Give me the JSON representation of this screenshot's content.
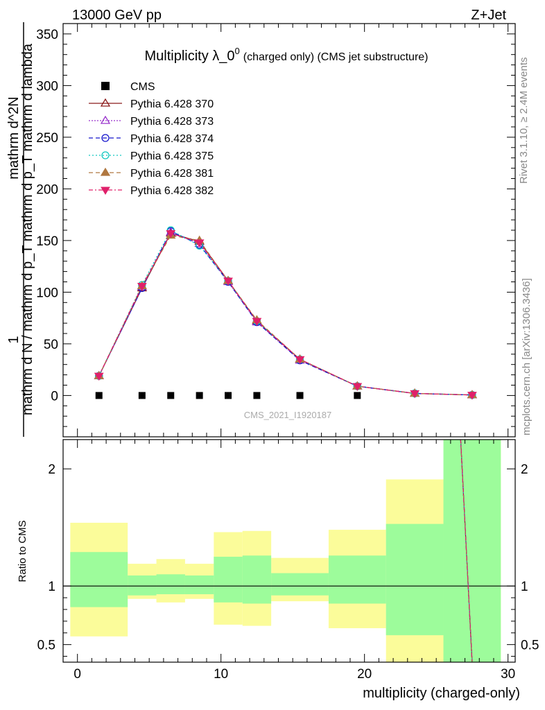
{
  "header": {
    "left": "13000 GeV pp",
    "right": "Z+Jet"
  },
  "side_text": {
    "rivet": "Rivet 3.1.10, ≥ 2.4M events",
    "mcplots": "mcplots.cern.ch [arXiv:1306.3436]"
  },
  "chart_data": {
    "type": "line",
    "title_main": "Multiplicity λ_0",
    "title_sup": "0",
    "title_small": "(charged only) (CMS jet substructure)",
    "analysis_label": "CMS_2021_I1920187",
    "ylabel_top_numerator": "1",
    "ylabel_top_denominator": "mathrm d N / mathrm d p_T mathrm d p_T mathrm d lambda",
    "ylabel_main": "mathrm d^2N",
    "ylabel_ratio": "Ratio to CMS",
    "xlabel": "multiplicity (charged-only)",
    "xlim": [
      -1,
      30.5
    ],
    "ylim_main": [
      -40,
      360
    ],
    "ylim_ratio": [
      0.35,
      2.25
    ],
    "x_ticks": [
      0,
      10,
      20,
      30
    ],
    "y_ticks_main": [
      0,
      50,
      100,
      150,
      200,
      250,
      300,
      350
    ],
    "y_ticks_ratio": [
      0.5,
      1,
      2
    ],
    "legend_position": "top-left",
    "data": {
      "name": "CMS",
      "x": [
        1.5,
        4.5,
        6.5,
        8.5,
        10.5,
        12.5,
        15.5,
        19.5,
        23.5,
        27.5
      ],
      "y": [
        0,
        0,
        0,
        0,
        0,
        0,
        0,
        0,
        null,
        null
      ]
    },
    "bins": [
      [
        -0.5,
        3.5
      ],
      [
        3.5,
        5.5
      ],
      [
        5.5,
        7.5
      ],
      [
        7.5,
        9.5
      ],
      [
        9.5,
        11.5
      ],
      [
        11.5,
        13.5
      ],
      [
        13.5,
        17.5
      ],
      [
        17.5,
        21.5
      ],
      [
        21.5,
        25.5
      ],
      [
        25.5,
        29.5
      ]
    ],
    "band_inner": [
      [
        0.82,
        1.29
      ],
      [
        0.92,
        1.09
      ],
      [
        0.93,
        1.1
      ],
      [
        0.93,
        1.09
      ],
      [
        0.86,
        1.25
      ],
      [
        0.85,
        1.26
      ],
      [
        0.92,
        1.11
      ],
      [
        0.85,
        1.26
      ],
      [
        0.58,
        1.53
      ],
      [
        0.3,
        2.5
      ]
    ],
    "band_outer": [
      [
        0.57,
        1.54
      ],
      [
        0.89,
        1.19
      ],
      [
        0.86,
        1.23
      ],
      [
        0.89,
        1.19
      ],
      [
        0.67,
        1.46
      ],
      [
        0.66,
        1.47
      ],
      [
        0.87,
        1.24
      ],
      [
        0.64,
        1.48
      ],
      [
        0.3,
        1.91
      ],
      [
        0.3,
        2.5
      ]
    ],
    "series": [
      {
        "name": "Pythia 6.428 370",
        "color": "#8b1a1a",
        "dash": "",
        "marker": "triangle-open",
        "y": [
          19,
          104,
          157,
          149,
          111,
          72,
          35,
          9,
          2,
          0.5
        ]
      },
      {
        "name": "Pythia 6.428 373",
        "color": "#9932cc",
        "dash": "2,2",
        "marker": "triangle-open",
        "y": [
          19,
          105,
          158,
          147,
          110,
          71,
          34,
          9,
          2,
          0.5
        ]
      },
      {
        "name": "Pythia 6.428 374",
        "color": "#1515cc",
        "dash": "6,4",
        "marker": "circle-open",
        "y": [
          19,
          104,
          159,
          146,
          110,
          71,
          34,
          9,
          2,
          0.5
        ]
      },
      {
        "name": "Pythia 6.428 375",
        "color": "#10c8c0",
        "dash": "2,3",
        "marker": "circle-open",
        "y": [
          19,
          107,
          160,
          145,
          111,
          72,
          35,
          9,
          2,
          0.5
        ]
      },
      {
        "name": "Pythia 6.428 381",
        "color": "#b07840",
        "dash": "6,4",
        "marker": "triangle-filled",
        "y": [
          19,
          106,
          155,
          150,
          111,
          73,
          35,
          9,
          2,
          0.5
        ]
      },
      {
        "name": "Pythia 6.428 382",
        "color": "#e0206a",
        "dash": "6,3,2,3",
        "marker": "triangle-down-filled",
        "y": [
          19,
          106,
          157,
          148,
          111,
          72,
          35,
          9,
          2,
          0.5
        ]
      }
    ],
    "colors": {
      "band_inner": "#9dfc9b",
      "band_outer": "#fbfc9a",
      "reference_line": "#000000"
    }
  }
}
